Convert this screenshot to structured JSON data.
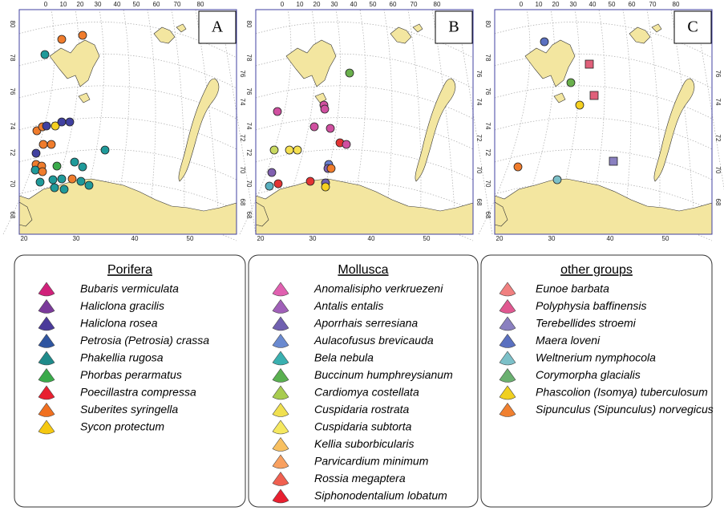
{
  "panels": [
    {
      "label": "A",
      "top_ticks": [
        0,
        10,
        20,
        30,
        40,
        50,
        60,
        70,
        80
      ],
      "left_ticks": [
        80,
        78,
        76,
        74,
        72,
        70,
        68
      ],
      "right_ticks": [
        76,
        74,
        72,
        70,
        68
      ],
      "bottom_ticks": [
        20,
        30,
        40,
        50
      ]
    },
    {
      "label": "B",
      "top_ticks": [
        0,
        10,
        20,
        30,
        40,
        50,
        60,
        70,
        80
      ],
      "left_ticks": [
        80,
        78,
        76,
        74,
        72,
        70,
        68
      ],
      "right_ticks": [
        76,
        74,
        72,
        70,
        68
      ],
      "bottom_ticks": [
        20,
        30,
        40,
        50
      ]
    },
    {
      "label": "C",
      "top_ticks": [
        0,
        10,
        20,
        30,
        40,
        50,
        60,
        70,
        80
      ],
      "left_ticks": [
        80,
        78,
        76,
        74,
        72,
        70,
        68
      ],
      "right_ticks": [
        76,
        74,
        72,
        70,
        68
      ],
      "bottom_ticks": [
        20,
        30,
        40,
        50
      ]
    }
  ],
  "legends": [
    {
      "title": "Porifera",
      "items": [
        {
          "name": "Bubaris vermiculata",
          "color": "#d0217a"
        },
        {
          "name": "Haliclona gracilis",
          "color": "#7a3a9a"
        },
        {
          "name": "Haliclona rosea",
          "color": "#4a3a9a"
        },
        {
          "name": "Petrosia (Petrosia) crassa",
          "color": "#2f55a0"
        },
        {
          "name": "Phakellia rugosa",
          "color": "#1f8a8a"
        },
        {
          "name": "Phorbas perarmatus",
          "color": "#3aaa4a"
        },
        {
          "name": "Poecillastra compressa",
          "color": "#e82030"
        },
        {
          "name": "Suberites syringella",
          "color": "#f07020"
        },
        {
          "name": "Sycon protectum",
          "color": "#f5c810"
        }
      ]
    },
    {
      "title": "Mollusca",
      "items": [
        {
          "name": "Anomalisipho verkruezeni",
          "color": "#e060b0"
        },
        {
          "name": "Antalis entalis",
          "color": "#a060b8"
        },
        {
          "name": "Aporrhais serresiana",
          "color": "#7060b0"
        },
        {
          "name": "Aulacofusus brevicauda",
          "color": "#6a8ad0"
        },
        {
          "name": "Bela nebula",
          "color": "#3ab0b0"
        },
        {
          "name": "Buccinum humphreysianum",
          "color": "#5ab050"
        },
        {
          "name": "Cardiomya costellata",
          "color": "#a8cc50"
        },
        {
          "name": "Cuspidaria rostrata",
          "color": "#f0e050"
        },
        {
          "name": "Cuspidaria subtorta",
          "color": "#f5e860"
        },
        {
          "name": "Kellia suborbicularis",
          "color": "#f8c060"
        },
        {
          "name": "Parvicardium minimum",
          "color": "#f8a060"
        },
        {
          "name": "Rossia megaptera",
          "color": "#f06050"
        },
        {
          "name": "Siphonodentalium lobatum",
          "color": "#e82030"
        }
      ]
    },
    {
      "title": "other groups",
      "items": [
        {
          "name": "Eunoe barbata",
          "color": "#f08080"
        },
        {
          "name": "Polyphysia baffinensis",
          "color": "#e05890"
        },
        {
          "name": "Terebellides stroemi",
          "color": "#8a80c0"
        },
        {
          "name": "Maera loveni",
          "color": "#5a70c0"
        },
        {
          "name": "Weltnerium nymphocola",
          "color": "#7cc0c8"
        },
        {
          "name": "Corymorpha glacialis",
          "color": "#6ab070"
        },
        {
          "name": "Phascolion (Isomya) tuberculosum",
          "color": "#f0d020"
        },
        {
          "name": "Sipunculus (Sipunculus) norvegicus",
          "color": "#f08030"
        }
      ]
    }
  ]
}
